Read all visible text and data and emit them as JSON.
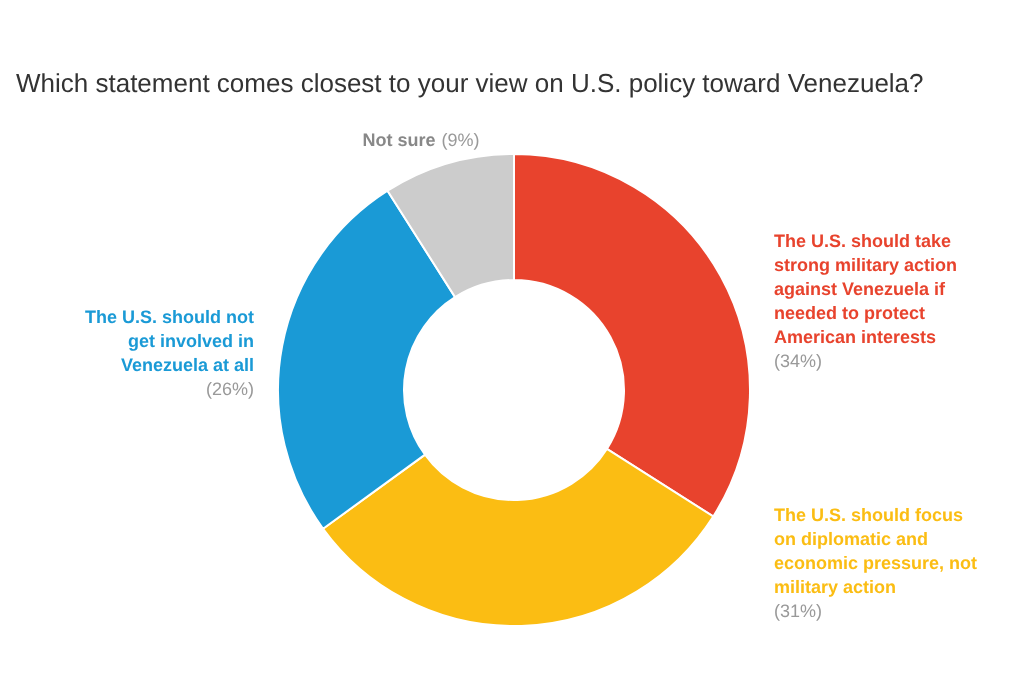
{
  "chart_data": {
    "type": "donut",
    "title": "Which statement comes closest to your view on U.S. policy toward Venezuela?",
    "categories": [
      "The U.S. should take strong military action against Venezuela if needed to protect American interests",
      "The U.S. should focus on diplomatic and economic pressure, not military action",
      "The U.S. should not get involved in Venezuela at all",
      "Not sure"
    ],
    "values": [
      34,
      31,
      26,
      9
    ],
    "colors": [
      "#e8432d",
      "#fbbd13",
      "#1a9ad6",
      "#cccccc"
    ],
    "value_labels": [
      "(34%)",
      "(31%)",
      "(26%)",
      "(9%)"
    ]
  }
}
